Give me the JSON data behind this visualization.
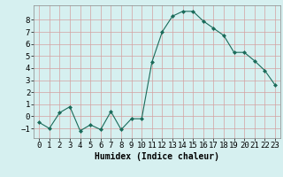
{
  "x": [
    0,
    1,
    2,
    3,
    4,
    5,
    6,
    7,
    8,
    9,
    10,
    11,
    12,
    13,
    14,
    15,
    16,
    17,
    18,
    19,
    20,
    21,
    22,
    23
  ],
  "y": [
    -0.5,
    -1.0,
    0.3,
    0.8,
    -1.2,
    -0.7,
    -1.1,
    0.4,
    -1.1,
    -0.2,
    -0.2,
    4.5,
    7.0,
    8.3,
    8.7,
    8.7,
    7.9,
    7.3,
    6.7,
    5.3,
    5.3,
    4.6,
    3.8,
    2.6
  ],
  "line_color": "#1a6b5a",
  "marker_color": "#1a6b5a",
  "bg_color": "#d6f0f0",
  "grid_color": "#c8e0dc",
  "xlabel": "Humidex (Indice chaleur)",
  "ylim": [
    -1.8,
    9.2
  ],
  "xlim": [
    -0.5,
    23.5
  ],
  "yticks": [
    -1,
    0,
    1,
    2,
    3,
    4,
    5,
    6,
    7,
    8
  ],
  "xticks": [
    0,
    1,
    2,
    3,
    4,
    5,
    6,
    7,
    8,
    9,
    10,
    11,
    12,
    13,
    14,
    15,
    16,
    17,
    18,
    19,
    20,
    21,
    22,
    23
  ],
  "xlabel_fontsize": 7,
  "tick_fontsize": 6.5
}
